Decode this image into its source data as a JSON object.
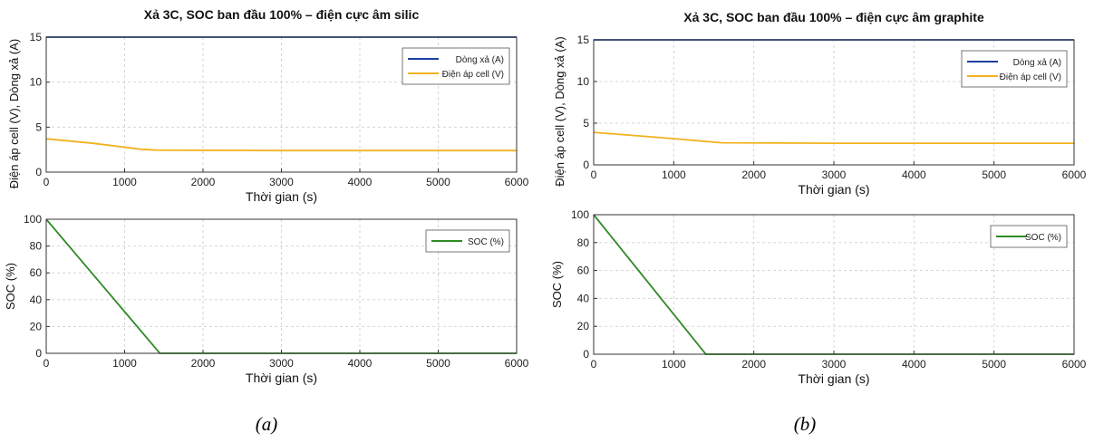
{
  "colors": {
    "current": "#1f3fa0",
    "voltage": "#f2b21f",
    "soc": "#2e8b24",
    "grid": "#d5d5d5",
    "axis": "#333333"
  },
  "captions": {
    "a": "(a)",
    "b": "(b)"
  },
  "chart_data": [
    {
      "type": "line",
      "panel": "a-top",
      "title": "Xả 3C, SOC ban đầu 100% – điện cực âm silic",
      "xlabel": "Thời gian (s)",
      "ylabel": "Điện áp cell (V), Dòng xả (A)",
      "xlim": [
        0,
        6000
      ],
      "ylim": [
        0,
        15
      ],
      "xticks": [
        "0",
        "1000",
        "2000",
        "3000",
        "4000",
        "5000",
        "6000"
      ],
      "yticks": [
        "0",
        "5",
        "10",
        "15"
      ],
      "legend_position": "top-right",
      "grid": true,
      "series": [
        {
          "name": "Dòng xả (A)",
          "color": "#1f3fa0",
          "x": [
            0,
            6000
          ],
          "y": [
            15,
            15
          ]
        },
        {
          "name": "Điện áp cell (V)",
          "color": "#f2b21f",
          "x": [
            0,
            600,
            1200,
            1400,
            3000,
            6000
          ],
          "y": [
            3.7,
            3.2,
            2.55,
            2.45,
            2.4,
            2.4
          ]
        }
      ]
    },
    {
      "type": "line",
      "panel": "a-bottom",
      "title": "",
      "xlabel": "Thời gian (s)",
      "ylabel": "SOC (%)",
      "xlim": [
        0,
        6000
      ],
      "ylim": [
        0,
        100
      ],
      "xticks": [
        "0",
        "1000",
        "2000",
        "3000",
        "4000",
        "5000",
        "6000"
      ],
      "yticks": [
        "0",
        "20",
        "40",
        "60",
        "80",
        "100"
      ],
      "legend_position": "top-right",
      "grid": true,
      "series": [
        {
          "name": "SOC (%)",
          "color": "#2e8b24",
          "x": [
            0,
            1450,
            6000
          ],
          "y": [
            100,
            0,
            0
          ]
        }
      ]
    },
    {
      "type": "line",
      "panel": "b-top",
      "title": "Xả 3C, SOC ban đầu 100% – điện cực âm graphite",
      "xlabel": "Thời gian (s)",
      "ylabel": "Điện áp cell (V), Dòng xả (A)",
      "xlim": [
        0,
        6000
      ],
      "ylim": [
        0,
        15
      ],
      "xticks": [
        "0",
        "1000",
        "2000",
        "3000",
        "4000",
        "5000",
        "6000"
      ],
      "yticks": [
        "0",
        "5",
        "10",
        "15"
      ],
      "legend_position": "top-right",
      "grid": true,
      "series": [
        {
          "name": "Dòng xả (A)",
          "color": "#1f3fa0",
          "x": [
            0,
            6000
          ],
          "y": [
            15,
            15
          ]
        },
        {
          "name": "Điện áp cell (V)",
          "color": "#f2b21f",
          "x": [
            0,
            800,
            1600,
            3000,
            6000
          ],
          "y": [
            3.9,
            3.3,
            2.65,
            2.6,
            2.6
          ]
        }
      ]
    },
    {
      "type": "line",
      "panel": "b-bottom",
      "title": "",
      "xlabel": "Thời gian (s)",
      "ylabel": "SOC (%)",
      "xlim": [
        0,
        6000
      ],
      "ylim": [
        0,
        100
      ],
      "xticks": [
        "0",
        "1000",
        "2000",
        "3000",
        "4000",
        "5000",
        "6000"
      ],
      "yticks": [
        "0",
        "20",
        "40",
        "60",
        "80",
        "100"
      ],
      "legend_position": "top-right",
      "grid": true,
      "series": [
        {
          "name": "SOC (%)",
          "color": "#2e8b24",
          "x": [
            0,
            1400,
            6000
          ],
          "y": [
            100,
            0,
            0
          ]
        }
      ]
    }
  ]
}
